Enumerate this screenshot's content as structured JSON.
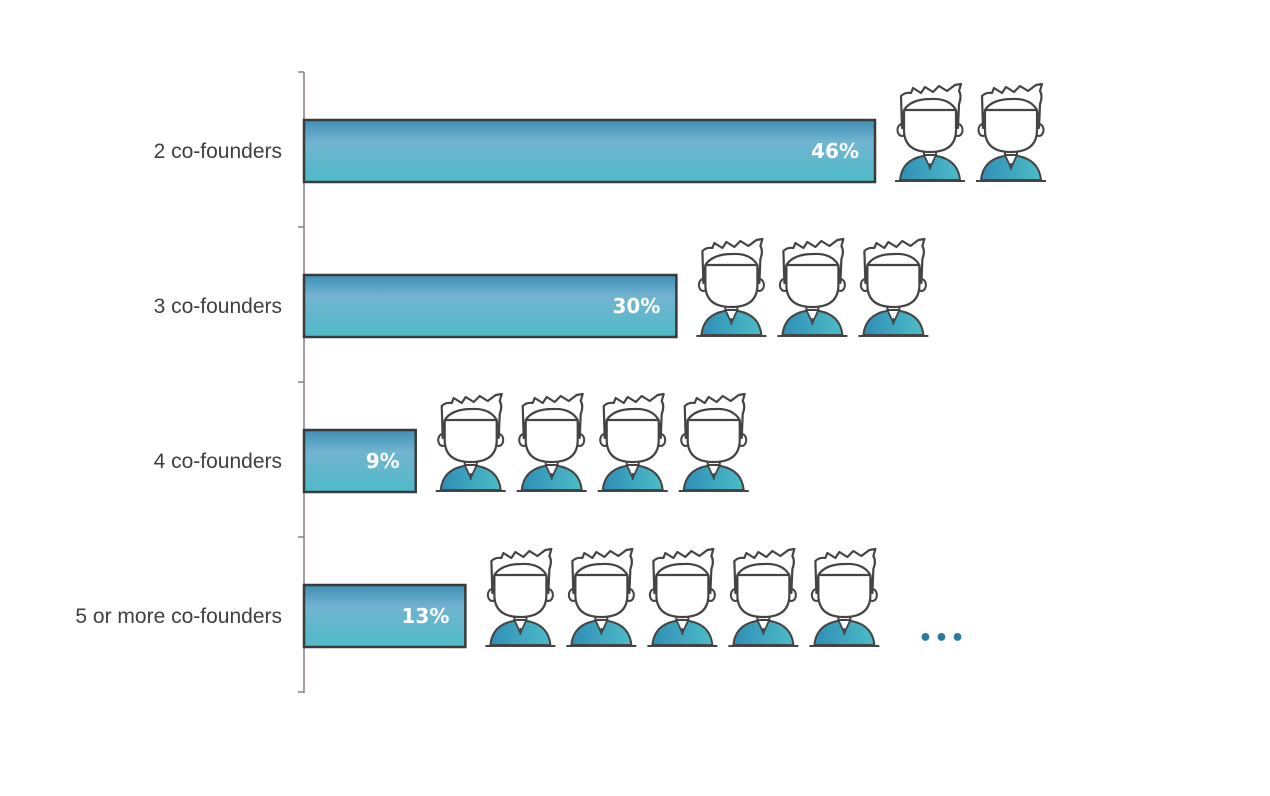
{
  "chart_data": {
    "type": "bar",
    "orientation": "horizontal",
    "categories": [
      "2 co-founders",
      "3 co-founders",
      "4 co-founders",
      "5 or more co-founders"
    ],
    "values": [
      46,
      30,
      9,
      13
    ],
    "value_labels": [
      "46%",
      "30%",
      "9%",
      "13%"
    ],
    "founder_icon_counts": [
      2,
      3,
      4,
      5
    ],
    "more_indicator": [
      false,
      false,
      false,
      true
    ],
    "more_indicator_text": "•••",
    "unit": "%",
    "grid": false,
    "legend": "none"
  },
  "colors": {
    "bar_top": "#3f8fb5",
    "bar_mid": "#72b4d0",
    "bar_bottom": "#4ebbc8",
    "bar_border": "#3a3a3a",
    "axis": "#8a7a94",
    "icon_shirt": "#3aa0bf",
    "icon_outline": "#444444",
    "dots": "#2a7a9a"
  }
}
